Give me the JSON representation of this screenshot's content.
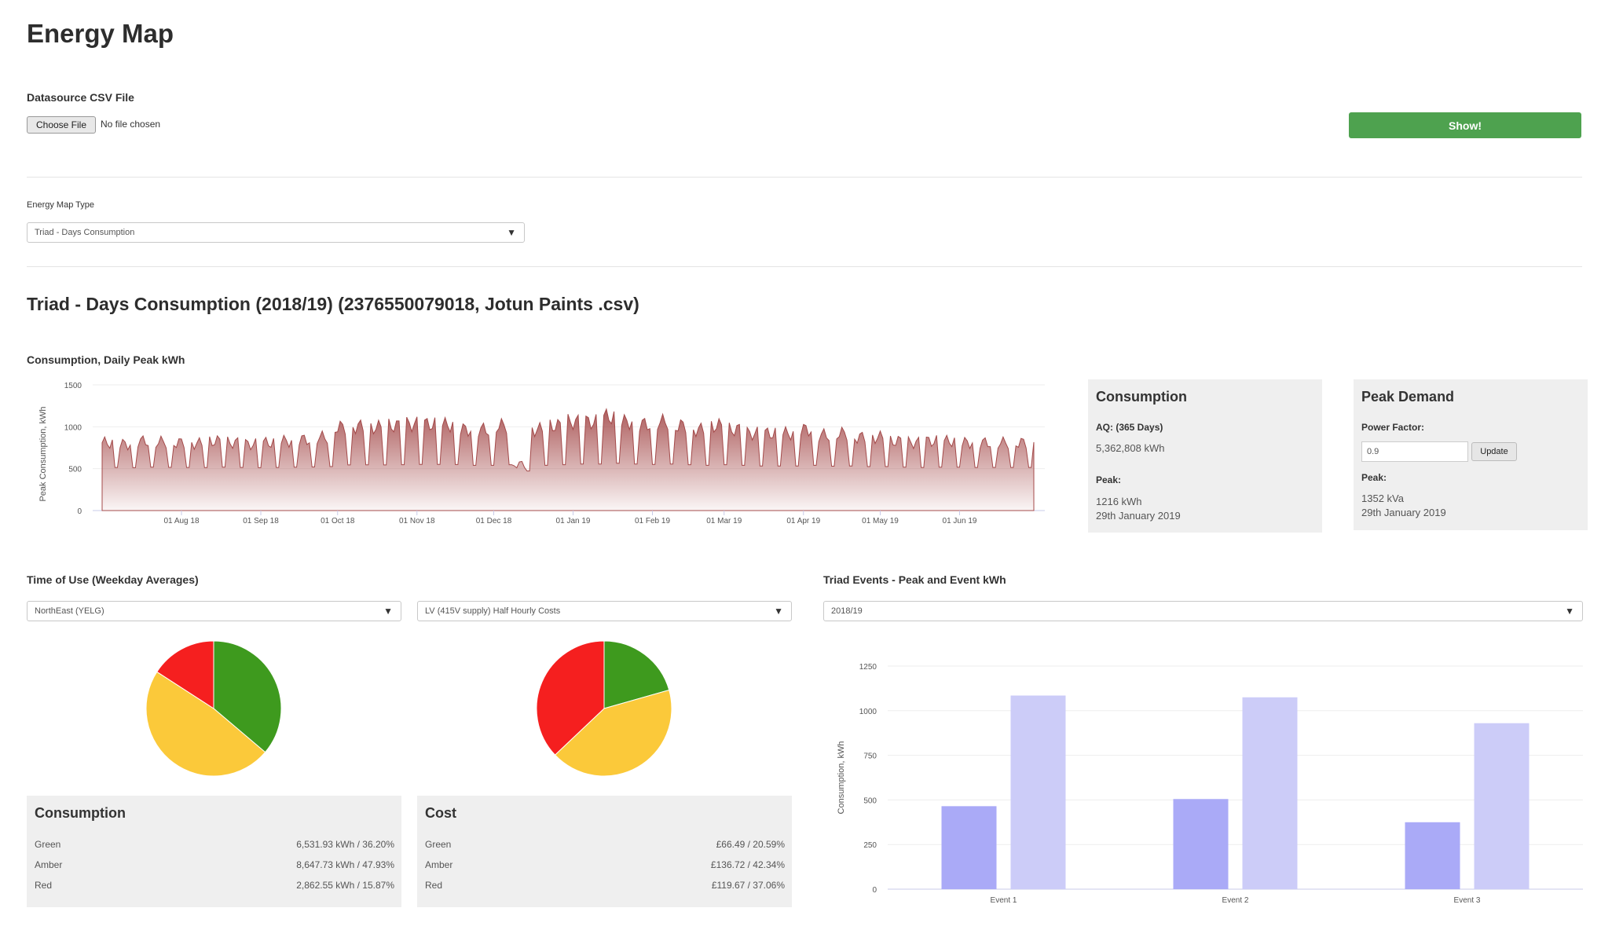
{
  "page": {
    "title": "Energy Map"
  },
  "datasource": {
    "label": "Datasource CSV File",
    "choose_file_label": "Choose File",
    "file_status": "No file chosen",
    "show_label": "Show!"
  },
  "map_type": {
    "label": "Energy Map Type",
    "selected": "Triad - Days Consumption"
  },
  "main_heading": "Triad - Days Consumption (2018/19) (2376550079018, Jotun Paints .csv)",
  "consumption_chart": {
    "title": "Consumption, Daily Peak kWh",
    "chart_data": {
      "type": "area",
      "title": "Consumption, Daily Peak kWh",
      "ylabel": "Peak Consumption, kWh",
      "ylim": [
        0,
        1500
      ],
      "yticks": [
        0,
        500,
        1000,
        1500
      ],
      "x_tick_labels": [
        "01 Aug 18",
        "01 Sep 18",
        "01 Oct 18",
        "01 Nov 18",
        "01 Dec 18",
        "01 Jan 19",
        "01 Feb 19",
        "01 Mar 19",
        "01 Apr 19",
        "01 May 19",
        "01 Jun 19"
      ],
      "x_range": [
        "2018-07-01",
        "2019-06-30"
      ],
      "weekly_peak_approx": [
        880,
        860,
        900,
        890,
        880,
        870,
        900,
        880,
        860,
        880,
        900,
        920,
        950,
        1080,
        1090,
        1080,
        1100,
        1120,
        1120,
        1110,
        1050,
        1050,
        1100,
        600,
        1050,
        1100,
        1150,
        1150,
        1216,
        1150,
        1120,
        1150,
        1100,
        1050,
        1100,
        1050,
        1000,
        1000,
        1000,
        1050,
        980,
        1000,
        950,
        950,
        900,
        880,
        900,
        900,
        880,
        880,
        880,
        880
      ],
      "weekend_trough_approx": 450,
      "color": "#a44a4a"
    }
  },
  "consumption_panel": {
    "title": "Consumption",
    "aq_label": "AQ: (365 Days)",
    "aq_value": "5,362,808 kWh",
    "peak_label": "Peak:",
    "peak_value": "1216 kWh",
    "peak_date": "29th January 2019"
  },
  "peak_demand_panel": {
    "title": "Peak Demand",
    "pf_label": "Power Factor:",
    "pf_value": "0.9",
    "update_label": "Update",
    "peak_label": "Peak:",
    "peak_value": "1352 kVa",
    "peak_date": "29th January 2019"
  },
  "time_of_use": {
    "title": "Time of Use (Weekday Averages)",
    "region_selected": "NorthEast (YELG)",
    "tariff_selected": "LV (415V supply) Half Hourly Costs",
    "colors": {
      "green": "#3e9a1e",
      "amber": "#fbc93a",
      "red": "#f51f1f"
    },
    "consumption": {
      "title": "Consumption",
      "chart_data": {
        "type": "pie",
        "labels": [
          "Green",
          "Amber",
          "Red"
        ],
        "values": [
          36.2,
          47.93,
          15.87
        ]
      },
      "rows": [
        {
          "label": "Green",
          "value": "6,531.93 kWh / 36.20%"
        },
        {
          "label": "Amber",
          "value": "8,647.73 kWh / 47.93%"
        },
        {
          "label": "Red",
          "value": "2,862.55 kWh / 15.87%"
        }
      ]
    },
    "cost": {
      "title": "Cost",
      "chart_data": {
        "type": "pie",
        "labels": [
          "Green",
          "Amber",
          "Red"
        ],
        "values": [
          20.59,
          42.34,
          37.06
        ]
      },
      "rows": [
        {
          "label": "Green",
          "value": "£66.49 / 20.59%"
        },
        {
          "label": "Amber",
          "value": "£136.72 / 42.34%"
        },
        {
          "label": "Red",
          "value": "£119.67 / 37.06%"
        }
      ]
    }
  },
  "triad": {
    "title": "Triad Events - Peak and Event kWh",
    "year_selected": "2018/19",
    "chart_data": {
      "type": "bar",
      "categories": [
        "Event 1",
        "Event 2",
        "Event 3"
      ],
      "series": [
        {
          "color": "#aaaaf7",
          "values": [
            465,
            505,
            375
          ]
        },
        {
          "color": "#ccccf8",
          "values": [
            1085,
            1075,
            930
          ]
        }
      ],
      "ylabel": "Consumption, kWh",
      "ylim": [
        0,
        1250
      ],
      "yticks": [
        0,
        250,
        500,
        750,
        1000,
        1250
      ]
    }
  }
}
